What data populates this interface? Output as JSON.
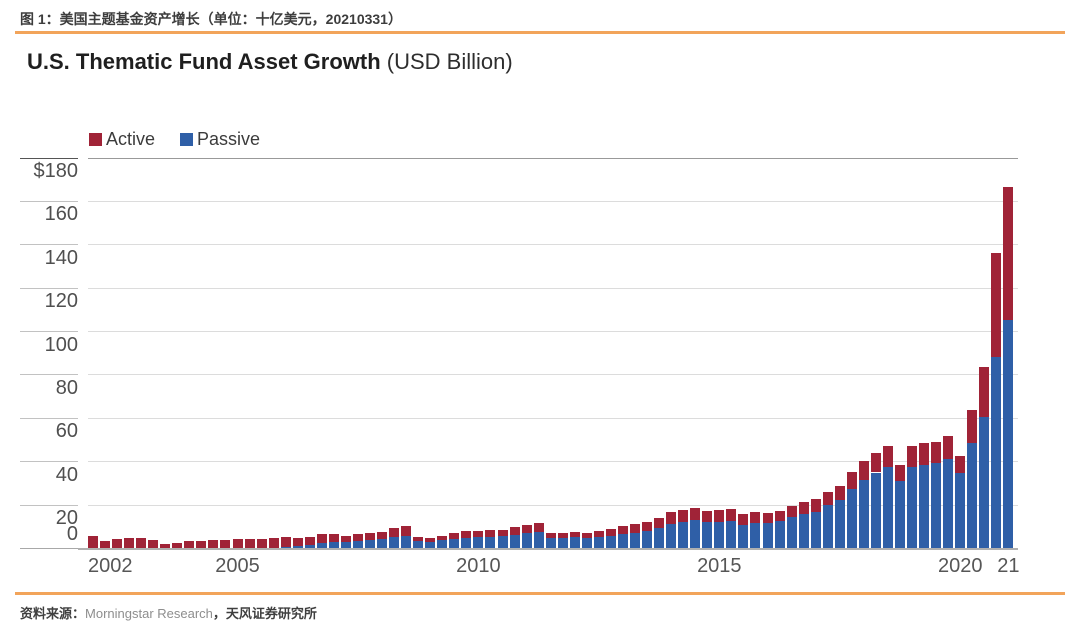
{
  "figure_header": {
    "label": "图 1：美国主题基金资产增长（单位：十亿美元，20210331）"
  },
  "title": {
    "main": "U.S. Thematic Fund Asset Growth",
    "suffix": " (USD Billion)"
  },
  "legend": {
    "items": [
      {
        "label": "Active",
        "color": "#a02337"
      },
      {
        "label": "Passive",
        "color": "#2f5fa7"
      }
    ]
  },
  "source": {
    "prefix": "资料来源：",
    "vendor": "Morningstar Research",
    "suffix": "，天风证券研究所"
  },
  "colors": {
    "accent_rule": "#f2a45a",
    "active": "#a02337",
    "passive": "#2f5fa7",
    "gridline": "#dcdcdc",
    "top_rule": "#999999",
    "axis": "#b0b0b0",
    "tick_mark": "#c2c2c2",
    "tick_mark_top": "#555555",
    "tick_mark_zero": "#a8a8a8"
  },
  "chart_data": {
    "type": "bar",
    "stacked": true,
    "title": "U.S. Thematic Fund Asset Growth (USD Billion)",
    "as_of_label": "20210331",
    "unit": "USD Billion",
    "grid": true,
    "legend_position": "top-left",
    "ylim": [
      0,
      180
    ],
    "categories": [
      "2002Q1",
      "2002Q2",
      "2002Q3",
      "2002Q4",
      "2003Q1",
      "2003Q2",
      "2003Q3",
      "2003Q4",
      "2004Q1",
      "2004Q2",
      "2004Q3",
      "2004Q4",
      "2005Q1",
      "2005Q2",
      "2005Q3",
      "2005Q4",
      "2006Q1",
      "2006Q2",
      "2006Q3",
      "2006Q4",
      "2007Q1",
      "2007Q2",
      "2007Q3",
      "2007Q4",
      "2008Q1",
      "2008Q2",
      "2008Q3",
      "2008Q4",
      "2009Q1",
      "2009Q2",
      "2009Q3",
      "2009Q4",
      "2010Q1",
      "2010Q2",
      "2010Q3",
      "2010Q4",
      "2011Q1",
      "2011Q2",
      "2011Q3",
      "2011Q4",
      "2012Q1",
      "2012Q2",
      "2012Q3",
      "2012Q4",
      "2013Q1",
      "2013Q2",
      "2013Q3",
      "2013Q4",
      "2014Q1",
      "2014Q2",
      "2014Q3",
      "2014Q4",
      "2015Q1",
      "2015Q2",
      "2015Q3",
      "2015Q4",
      "2016Q1",
      "2016Q2",
      "2016Q3",
      "2016Q4",
      "2017Q1",
      "2017Q2",
      "2017Q3",
      "2017Q4",
      "2018Q1",
      "2018Q2",
      "2018Q3",
      "2018Q4",
      "2019Q1",
      "2019Q2",
      "2019Q3",
      "2019Q4",
      "2020Q1",
      "2020Q2",
      "2020Q3",
      "2020Q4",
      "2021Q1"
    ],
    "series": [
      {
        "name": "Passive",
        "color": "#2f5fa7",
        "values": [
          0,
          0,
          0,
          0,
          0,
          0,
          0,
          0,
          0,
          0,
          0,
          0,
          0,
          0,
          0,
          0,
          0.5,
          0.8,
          1.4,
          2.2,
          2.6,
          2.7,
          3.2,
          3.6,
          4.2,
          5.0,
          5.6,
          3.0,
          2.9,
          3.5,
          4.2,
          4.8,
          4.9,
          5.1,
          5.4,
          6.2,
          6.7,
          7.2,
          4.5,
          4.7,
          4.9,
          4.7,
          5.2,
          5.7,
          6.5,
          7.1,
          7.8,
          9.3,
          11.2,
          12.1,
          12.8,
          11.9,
          12.1,
          12.5,
          10.8,
          11.4,
          11.3,
          12.4,
          14.2,
          15.5,
          16.8,
          19.9,
          22.0,
          27.3,
          31.5,
          34.8,
          37.3,
          30.8,
          37.5,
          38.3,
          39.4,
          41.0,
          34.7,
          48.5,
          60.2,
          88.2,
          105.3
        ]
      },
      {
        "name": "Active",
        "color": "#a02337",
        "values": [
          5.5,
          3.2,
          4.2,
          4.6,
          4.8,
          3.6,
          1.8,
          2.4,
          3.0,
          3.3,
          3.5,
          3.8,
          4.0,
          4.1,
          4.3,
          4.6,
          4.5,
          3.6,
          3.7,
          4.3,
          3.7,
          2.8,
          3.4,
          3.1,
          3.1,
          4.0,
          4.6,
          1.9,
          1.6,
          2.0,
          2.5,
          2.9,
          3.0,
          3.0,
          3.1,
          3.4,
          3.7,
          4.1,
          2.4,
          2.4,
          2.5,
          2.4,
          2.6,
          3.0,
          3.5,
          3.9,
          4.1,
          4.7,
          5.2,
          5.4,
          5.6,
          5.3,
          5.4,
          5.5,
          4.8,
          5.0,
          4.9,
          4.8,
          5.3,
          5.5,
          5.7,
          6.1,
          6.5,
          7.7,
          8.5,
          9.2,
          9.7,
          7.5,
          9.5,
          10.2,
          9.6,
          10.6,
          7.8,
          15.2,
          23.3,
          47.8,
          61.2
        ]
      }
    ],
    "y_axis": {
      "ticks": [
        {
          "value": 180,
          "label": "$180"
        },
        {
          "value": 160,
          "label": "160"
        },
        {
          "value": 140,
          "label": "140"
        },
        {
          "value": 120,
          "label": "120"
        },
        {
          "value": 100,
          "label": "100"
        },
        {
          "value": 80,
          "label": "80"
        },
        {
          "value": 60,
          "label": "60"
        },
        {
          "value": 40,
          "label": "40"
        },
        {
          "value": 20,
          "label": "20"
        },
        {
          "value": 0,
          "label": "0"
        }
      ]
    },
    "x_axis": {
      "ticks": [
        {
          "index": 0,
          "label": "2002",
          "align": "left"
        },
        {
          "index": 12,
          "label": "2005",
          "align": "center"
        },
        {
          "index": 32,
          "label": "2010",
          "align": "center"
        },
        {
          "index": 52,
          "label": "2015",
          "align": "center"
        },
        {
          "index": 72,
          "label": "2020",
          "align": "center"
        },
        {
          "index": 76,
          "label": "21",
          "align": "center"
        }
      ]
    }
  }
}
